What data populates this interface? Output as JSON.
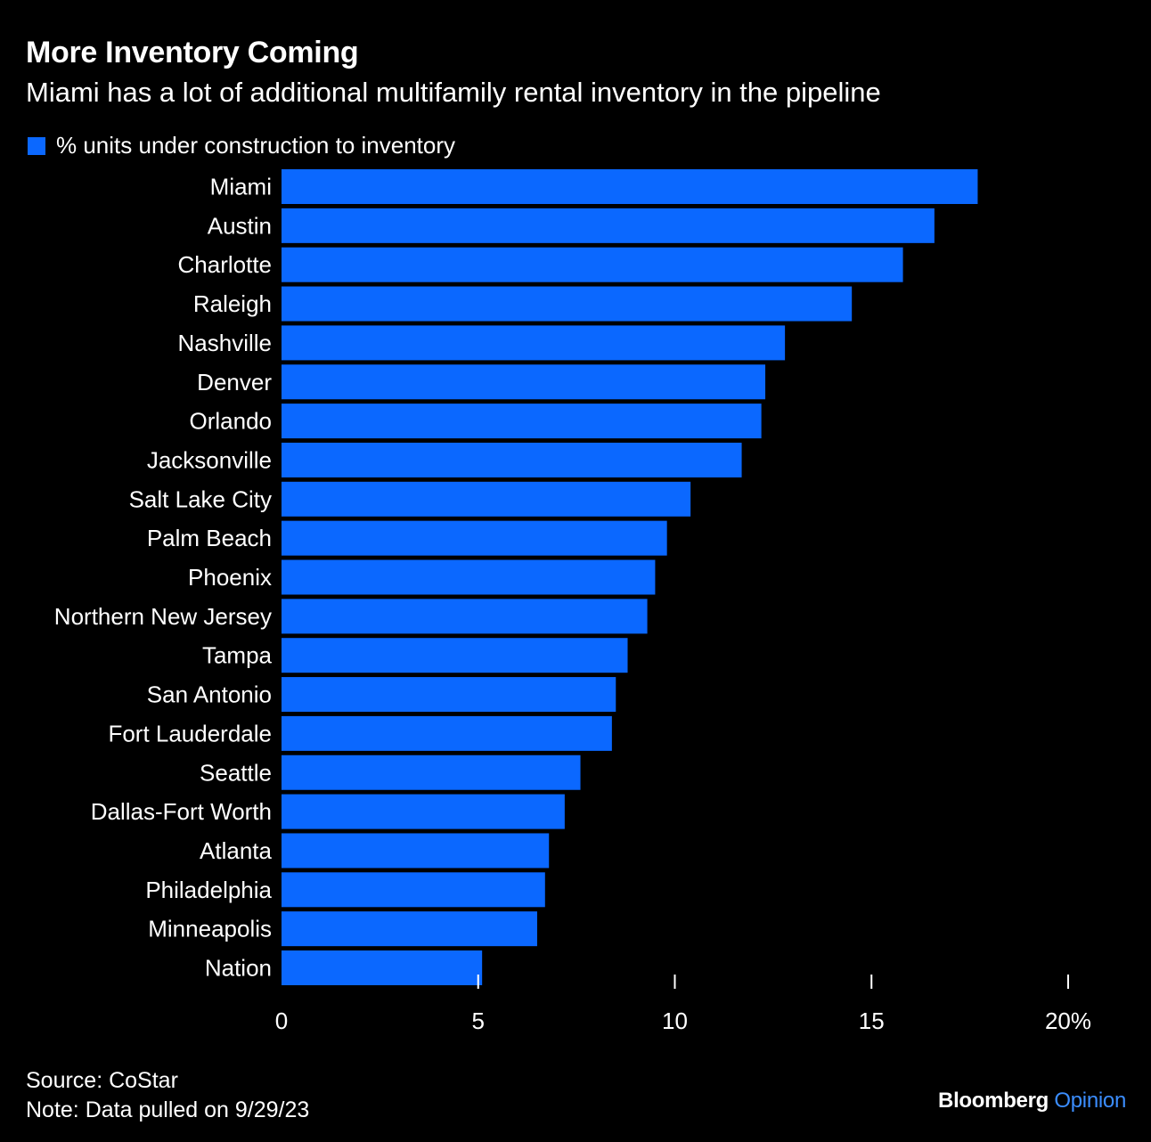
{
  "header": {
    "title": "More Inventory Coming",
    "subtitle": "Miami has a lot of additional multifamily rental inventory in the pipeline"
  },
  "legend": {
    "label": "% units under construction to inventory"
  },
  "colors": {
    "bar": "#0b68ff",
    "background": "#000000",
    "text": "#ffffff",
    "brand_accent": "#3b8dff"
  },
  "chart_data": {
    "type": "bar",
    "orientation": "horizontal",
    "title": "More Inventory Coming",
    "subtitle": "Miami has a lot of additional multifamily rental inventory in the pipeline",
    "xlabel": "",
    "ylabel": "",
    "xlim": [
      0,
      20
    ],
    "x_ticks": [
      0,
      5,
      10,
      15,
      20
    ],
    "x_tick_labels": [
      "0",
      "5",
      "10",
      "15",
      "20%"
    ],
    "series": [
      {
        "name": "% units under construction to inventory",
        "values": [
          17.7,
          16.6,
          15.8,
          14.5,
          12.8,
          12.3,
          12.2,
          11.7,
          10.4,
          9.8,
          9.5,
          9.3,
          8.8,
          8.5,
          8.4,
          7.6,
          7.2,
          6.8,
          6.7,
          6.5,
          5.1
        ]
      }
    ],
    "categories": [
      "Miami",
      "Austin",
      "Charlotte",
      "Raleigh",
      "Nashville",
      "Denver",
      "Orlando",
      "Jacksonville",
      "Salt Lake City",
      "Palm Beach",
      "Phoenix",
      "Northern New Jersey",
      "Tampa",
      "San Antonio",
      "Fort Lauderdale",
      "Seattle",
      "Dallas-Fort Worth",
      "Atlanta",
      "Philadelphia",
      "Minneapolis",
      "Nation"
    ],
    "legend": [
      "% units under construction to inventory"
    ],
    "grid": false
  },
  "footer": {
    "source": "Source: CoStar",
    "note": "Note: Data pulled on 9/29/23"
  },
  "brand": {
    "name": "Bloomberg",
    "accent": "Opinion"
  }
}
